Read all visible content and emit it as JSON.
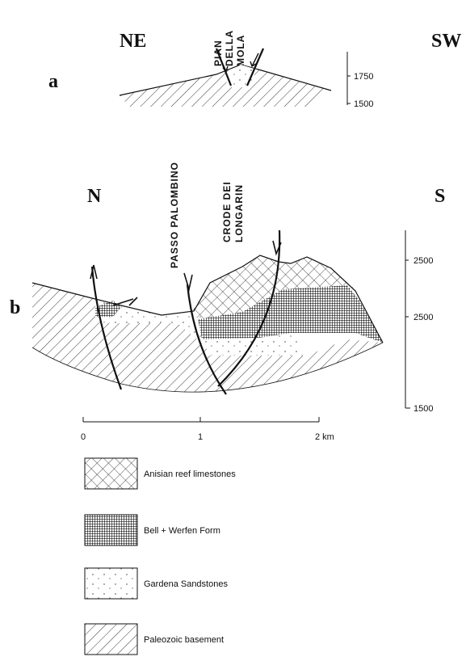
{
  "section_a": {
    "label": "a",
    "left": "NE",
    "right": "SW",
    "locality": [
      "PIAN",
      "DELLA",
      "MOLA"
    ],
    "elevations": [
      "1750",
      "1500"
    ]
  },
  "section_b": {
    "label": "b",
    "left": "N",
    "right": "S",
    "localities": [
      "PASSO PALOMBINO",
      "CRODE DEI",
      "LONGARIN"
    ],
    "elevations": [
      "2500",
      "2500",
      "1500"
    ]
  },
  "scale_bar": [
    "0",
    "1",
    "2 km"
  ],
  "legend": [
    "Anisian reef limestones",
    "Bell + Werfen Form",
    "Gardena Sandstones",
    "Paleozoic basement"
  ]
}
